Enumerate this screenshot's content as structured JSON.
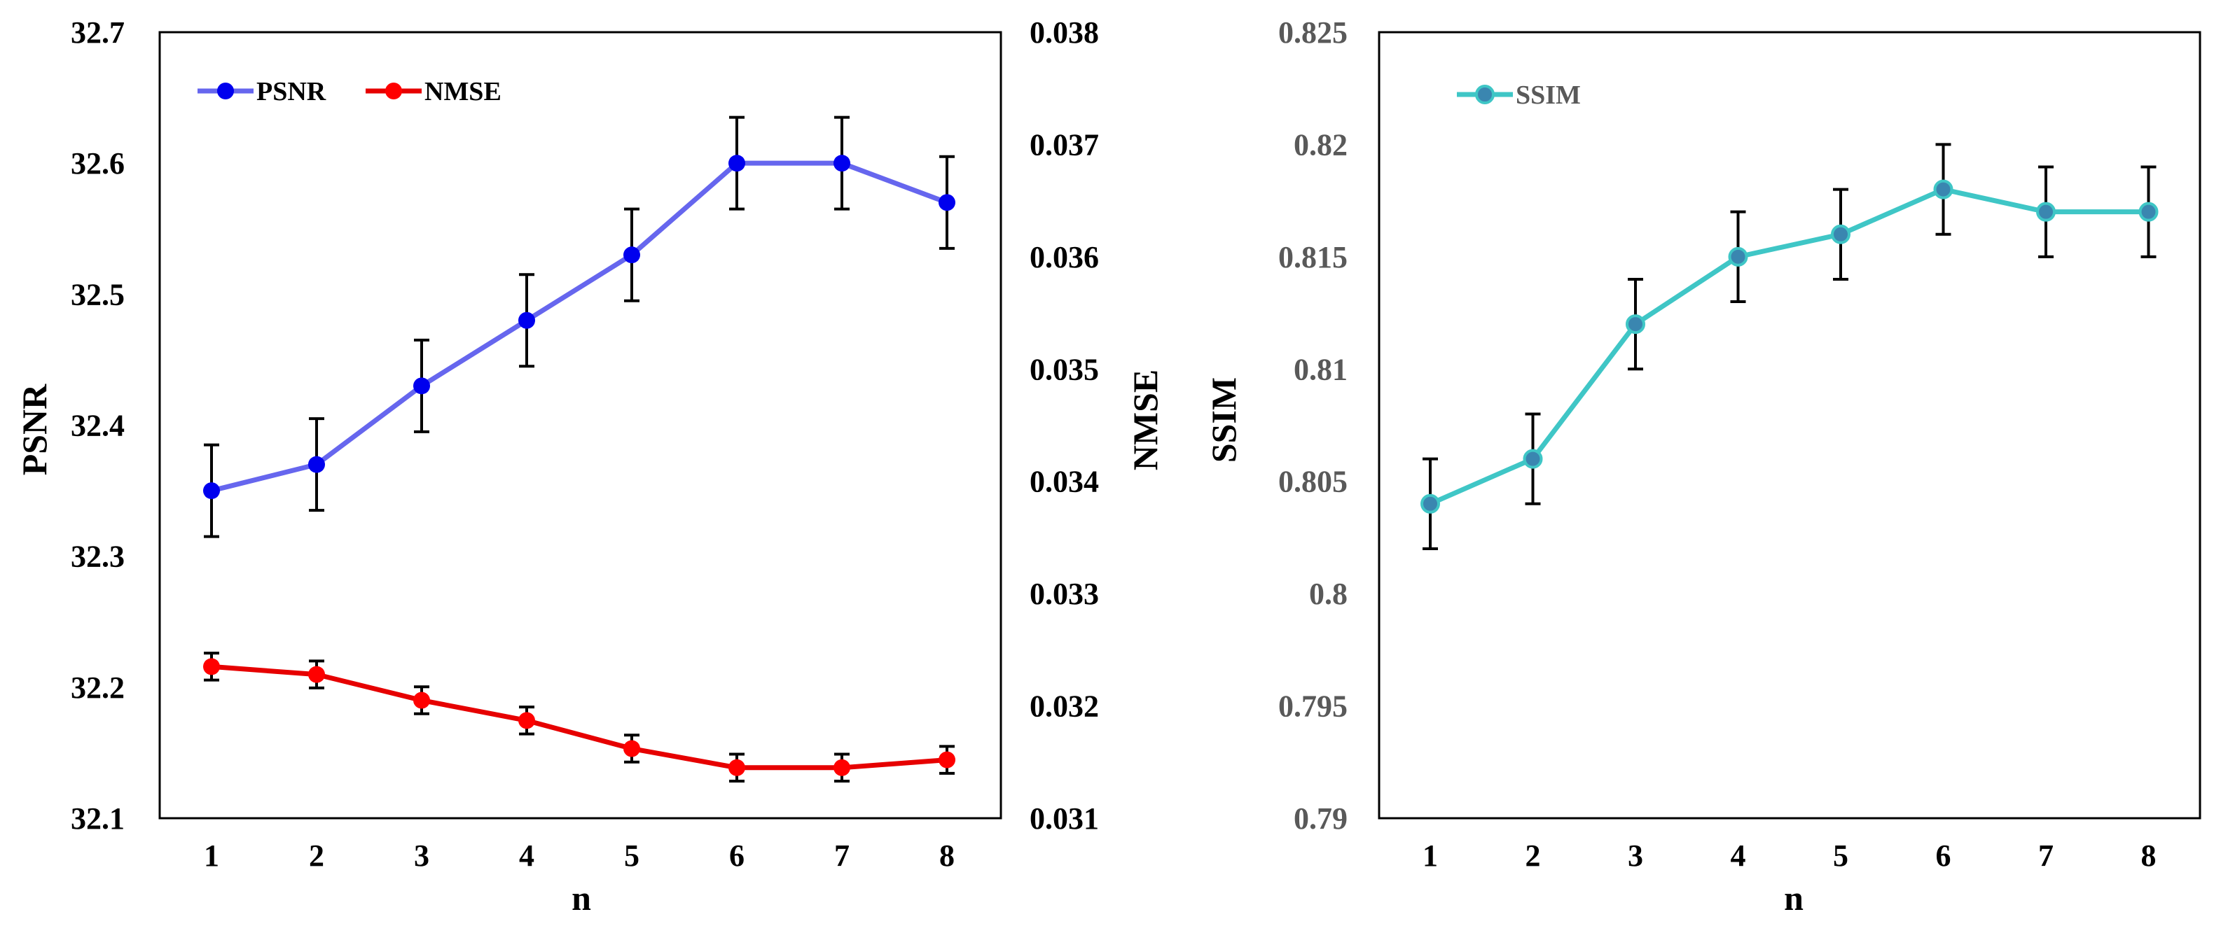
{
  "chart_data": [
    {
      "type": "line",
      "x": [
        1,
        2,
        3,
        4,
        5,
        6,
        7,
        8
      ],
      "xlabel": "n",
      "ylabel": "PSNR",
      "ylabel_right": "NMSE",
      "ylim": [
        32.1,
        32.7
      ],
      "ylim_right": [
        0.031,
        0.038
      ],
      "yticks": [
        "32.1",
        "32.2",
        "32.3",
        "32.4",
        "32.5",
        "32.6",
        "32.7"
      ],
      "yticks_right": [
        "0.031",
        "0.032",
        "0.033",
        "0.034",
        "0.035",
        "0.036",
        "0.037",
        "0.038"
      ],
      "legend": "top-left",
      "grid": false,
      "series": [
        {
          "name": "PSNR",
          "axis": "left",
          "color": "#6666ee",
          "marker_color": "#0000ee",
          "values": [
            32.35,
            32.37,
            32.43,
            32.48,
            32.53,
            32.6,
            32.6,
            32.57
          ],
          "errors": [
            0.035,
            0.035,
            0.035,
            0.035,
            0.035,
            0.035,
            0.035,
            0.035
          ]
        },
        {
          "name": "NMSE",
          "axis": "right",
          "color": "#e60000",
          "marker_color": "#ff0000",
          "values": [
            0.03235,
            0.03228,
            0.03205,
            0.03187,
            0.03162,
            0.03145,
            0.03145,
            0.03152
          ],
          "errors": [
            0.00012,
            0.00012,
            0.00012,
            0.00012,
            0.00012,
            0.00012,
            0.00012,
            0.00012
          ]
        }
      ]
    },
    {
      "type": "line",
      "x": [
        1,
        2,
        3,
        4,
        5,
        6,
        7,
        8
      ],
      "xlabel": "n",
      "ylabel": "SSIM",
      "ylim": [
        0.79,
        0.825
      ],
      "yticks": [
        "0.79",
        "0.795",
        "0.8",
        "0.805",
        "0.81",
        "0.815",
        "0.82",
        "0.825"
      ],
      "legend": "top-left",
      "grid": false,
      "series": [
        {
          "name": "SSIM",
          "axis": "left",
          "color": "#3fc6c6",
          "marker_color": "#3a86b0",
          "values": [
            0.804,
            0.806,
            0.812,
            0.815,
            0.816,
            0.818,
            0.817,
            0.817
          ],
          "errors": [
            0.002,
            0.002,
            0.002,
            0.002,
            0.002,
            0.002,
            0.002,
            0.002
          ]
        }
      ]
    }
  ]
}
